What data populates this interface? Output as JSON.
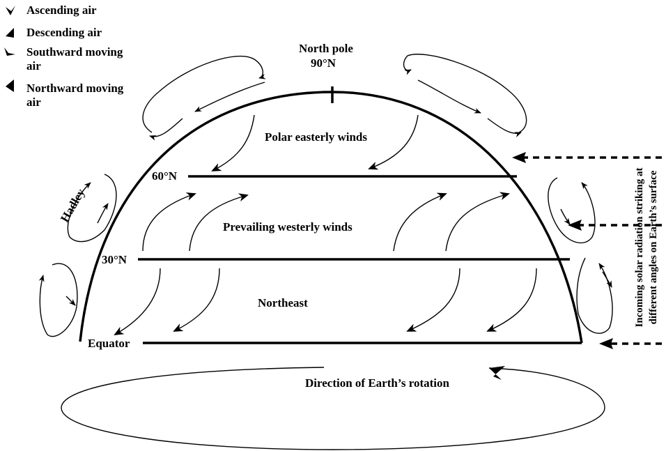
{
  "legend": {
    "items": [
      "Ascending air",
      "Descending air",
      "Southward moving air",
      "Northward moving air"
    ]
  },
  "labels": {
    "north_pole": "North pole",
    "lat_90": "90°N",
    "polar": "Polar easterly winds",
    "lat_60": "60°N",
    "westerly": "Prevailing westerly winds",
    "lat_30": "30°N",
    "northeast": "Northeast",
    "equator": "Equator",
    "rotation": "Direction of Earth’s rotation",
    "hadley": "Hadley",
    "incoming": [
      "Incoming solar radiation striking at",
      "different angles on Earth’s surface"
    ]
  }
}
